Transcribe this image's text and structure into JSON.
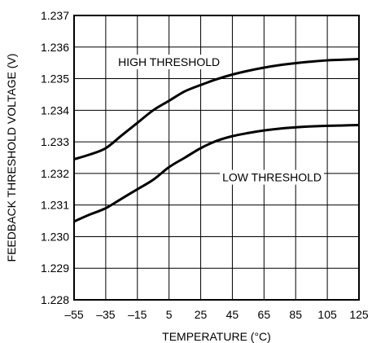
{
  "chart_data": {
    "type": "line",
    "xlabel": "TEMPERATURE (°C)",
    "ylabel": "FEEDBACK THRESHOLD VOLTAGE (V)",
    "xlim": [
      -55,
      125
    ],
    "ylim": [
      1.228,
      1.237
    ],
    "x_ticks": [
      -55,
      -35,
      -15,
      5,
      25,
      45,
      65,
      85,
      105,
      125
    ],
    "x_tick_labels": [
      "–55",
      "–35",
      "–15",
      "5",
      "25",
      "45",
      "65",
      "85",
      "105",
      "125"
    ],
    "y_ticks": [
      1.228,
      1.229,
      1.23,
      1.231,
      1.232,
      1.233,
      1.234,
      1.235,
      1.236,
      1.237
    ],
    "y_tick_labels": [
      "1.228",
      "1.229",
      "1.230",
      "1.231",
      "1.232",
      "1.233",
      "1.234",
      "1.235",
      "1.236",
      "1.237"
    ],
    "grid": true,
    "x": [
      -55,
      -45,
      -35,
      -25,
      -15,
      -5,
      5,
      15,
      25,
      35,
      45,
      55,
      65,
      75,
      85,
      95,
      105,
      115,
      125
    ],
    "series": [
      {
        "name": "HIGH THRESHOLD",
        "values": [
          1.23245,
          1.2326,
          1.2328,
          1.2332,
          1.2336,
          1.234,
          1.2343,
          1.2346,
          1.2348,
          1.23498,
          1.23513,
          1.23525,
          1.23535,
          1.23543,
          1.23549,
          1.23554,
          1.23558,
          1.2356,
          1.23562
        ]
      },
      {
        "name": "LOW THRESHOLD",
        "values": [
          1.23048,
          1.2307,
          1.2309,
          1.2312,
          1.2315,
          1.2318,
          1.2322,
          1.2325,
          1.2328,
          1.23303,
          1.23318,
          1.23328,
          1.23336,
          1.23342,
          1.23346,
          1.23349,
          1.23351,
          1.23352,
          1.23353
        ]
      }
    ],
    "annotations": [
      {
        "text": "HIGH THRESHOLD",
        "x": 5,
        "y": 1.2354,
        "series": 0
      },
      {
        "text": "LOW THRESHOLD",
        "x": 70,
        "y": 1.23175,
        "series": 1
      }
    ],
    "colors": {
      "line": "#000000",
      "grid": "#000000",
      "background": "#ffffff"
    }
  }
}
